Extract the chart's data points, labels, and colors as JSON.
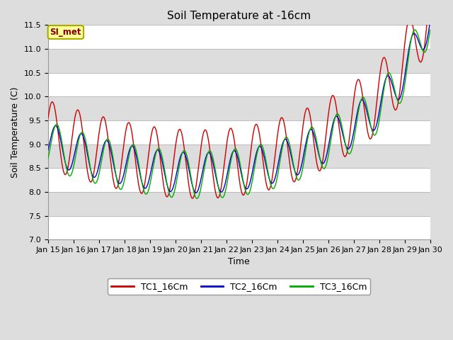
{
  "title": "Soil Temperature at -16cm",
  "xlabel": "Time",
  "ylabel": "Soil Temperature (C)",
  "ylim": [
    7.0,
    11.5
  ],
  "yticks": [
    7.0,
    7.5,
    8.0,
    8.5,
    9.0,
    9.5,
    10.0,
    10.5,
    11.0,
    11.5
  ],
  "xtick_labels": [
    "Jan 15",
    "Jan 16",
    "Jan 17",
    "Jan 18",
    "Jan 19",
    "Jan 20",
    "Jan 21",
    "Jan 22",
    "Jan 23",
    "Jan 24",
    "Jan 25",
    "Jan 26",
    "Jan 27",
    "Jan 28",
    "Jan 29",
    "Jan 30"
  ],
  "colors": {
    "TC1": "#cc0000",
    "TC2": "#0000cc",
    "TC3": "#00aa00"
  },
  "legend_labels": [
    "TC1_16Cm",
    "TC2_16Cm",
    "TC3_16Cm"
  ],
  "annotation_text": "SI_met",
  "annotation_bg": "#ffff99",
  "annotation_border": "#aaaa00",
  "title_fontsize": 11,
  "label_fontsize": 9,
  "tick_fontsize": 8,
  "legend_fontsize": 9,
  "bg_color": "#dddddd",
  "white_band_color": "#ffffff",
  "gray_band_color": "#dddddd"
}
